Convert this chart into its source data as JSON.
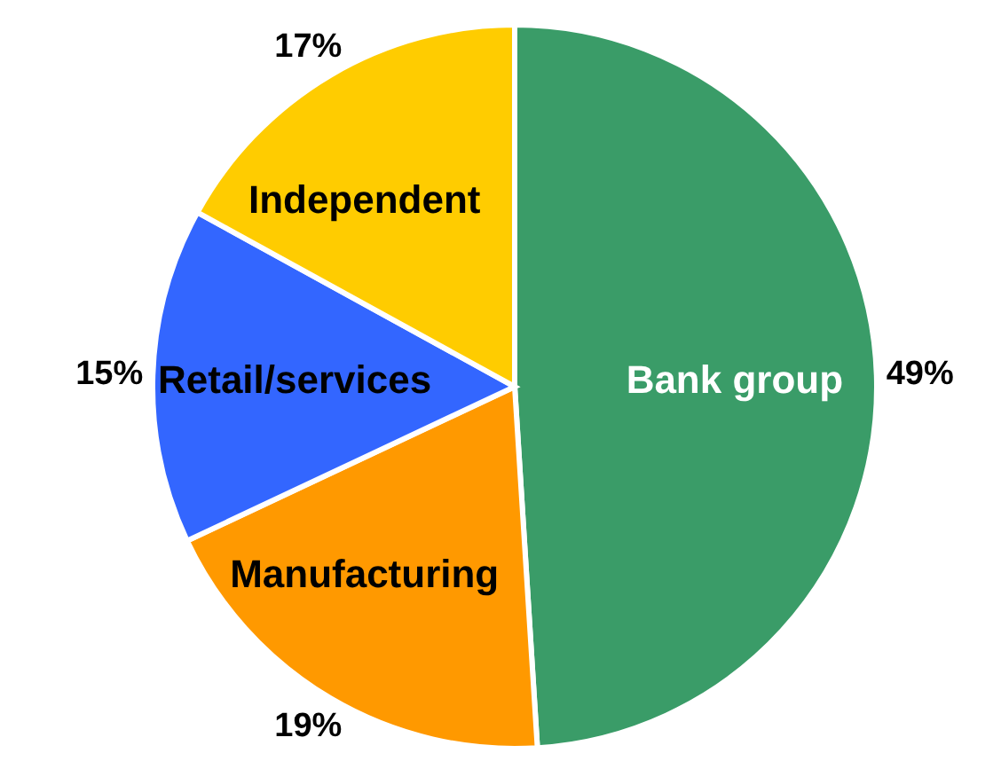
{
  "chart_data": {
    "type": "pie",
    "categories": [
      "Bank group",
      "Manufacturing",
      "Retail/services",
      "Independent"
    ],
    "values": [
      49,
      19,
      15,
      17
    ],
    "colors": [
      "#3a9c68",
      "#ff9900",
      "#3366ff",
      "#ffcc00"
    ],
    "value_labels": [
      "49%",
      "19%",
      "15%",
      "17%"
    ],
    "legend": false
  }
}
